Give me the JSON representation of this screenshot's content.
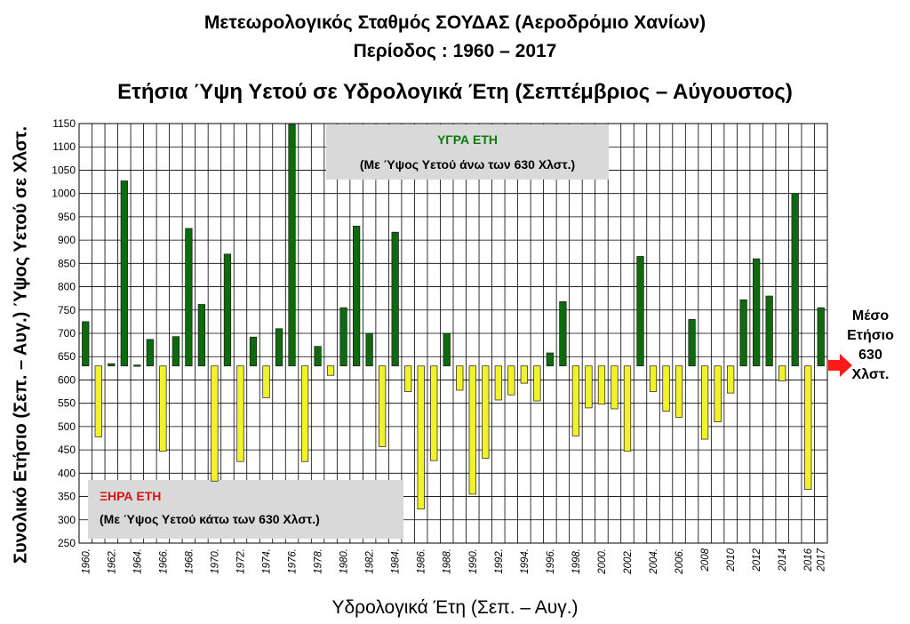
{
  "titles": {
    "line1": "Μετεωρολογικός Σταθμός ΣΟΥΔΑΣ (Αεροδρόμιο Χανίων)",
    "line2": "Περίοδος  : 1960 – 2017",
    "line3": "Ετήσια  Ύψη Υετού σε Υδρολογικά Έτη  (Σεπτέμβριος – Αύγουστος)"
  },
  "boxes": {
    "wet_title": "ΥΓΡΑ ΕΤΗ",
    "wet_sub": "(Με Ύψος Υετού  άνω των 630 Χλστ.)",
    "dry_title": "ΞΗΡΑ ΕΤΗ",
    "dry_sub": "(Με Ύψος Υετού  κάτω των 630 Χλστ.)"
  },
  "average": {
    "line1": "Μέσο",
    "line2": "Ετήσιο",
    "line3": "630",
    "line4": "Χλστ."
  },
  "chart_data": {
    "type": "bar",
    "xlabel": "Υδρολογικά Έτη  (Σεπ. – Αυγ.)",
    "ylabel": "Συνολικό Ετήσιο  (Σεπ. – Αυγ.) Ύψος  Υετού σε Χλστ.",
    "ylim": [
      250,
      1150
    ],
    "ytick_step": 50,
    "baseline": 630,
    "grid": true,
    "colors": {
      "wet": "#0d6b0d",
      "dry": "#f2f22a",
      "wet_label": "#0b7a0b",
      "dry_label": "#e01010",
      "arrow": "#ff1a1a",
      "box": "#d9d9d9"
    },
    "categories": [
      1960,
      1961,
      1962,
      1963,
      1964,
      1965,
      1966,
      1967,
      1968,
      1969,
      1970,
      1971,
      1972,
      1973,
      1974,
      1975,
      1976,
      1977,
      1978,
      1979,
      1980,
      1981,
      1982,
      1983,
      1984,
      1985,
      1986,
      1987,
      1988,
      1989,
      1990,
      1991,
      1992,
      1993,
      1994,
      1995,
      1996,
      1997,
      1998,
      1999,
      2000,
      2001,
      2002,
      2003,
      2004,
      2005,
      2006,
      2007,
      2008,
      2009,
      2010,
      2011,
      2012,
      2013,
      2014,
      2015,
      2016,
      2017
    ],
    "x_tick_labels": [
      "1960.",
      "1962.",
      "1964.",
      "1966.",
      "1968.",
      "1970.",
      "1972.",
      "1974.",
      "1976.",
      "1978.",
      "1980.",
      "1982.",
      "1984.",
      "1986.",
      "1988.",
      "1990.",
      "1992.",
      "1994.",
      "1996.",
      "1998.",
      "2000.",
      "2002.",
      "2004.",
      "2006.",
      "2008",
      "2010",
      "2012",
      "2014",
      "2016",
      "2017"
    ],
    "values": [
      725,
      478,
      635,
      1027,
      632,
      687,
      447,
      693,
      925,
      762,
      383,
      870,
      425,
      692,
      562,
      710,
      1148,
      425,
      672,
      610,
      755,
      930,
      700,
      457,
      917,
      575,
      323,
      427,
      700,
      578,
      355,
      432,
      557,
      568,
      593,
      555,
      658,
      768,
      480,
      540,
      548,
      538,
      447,
      865,
      575,
      533,
      520,
      730,
      473,
      510,
      572,
      772,
      860,
      780,
      598,
      1000,
      365,
      755
    ]
  }
}
